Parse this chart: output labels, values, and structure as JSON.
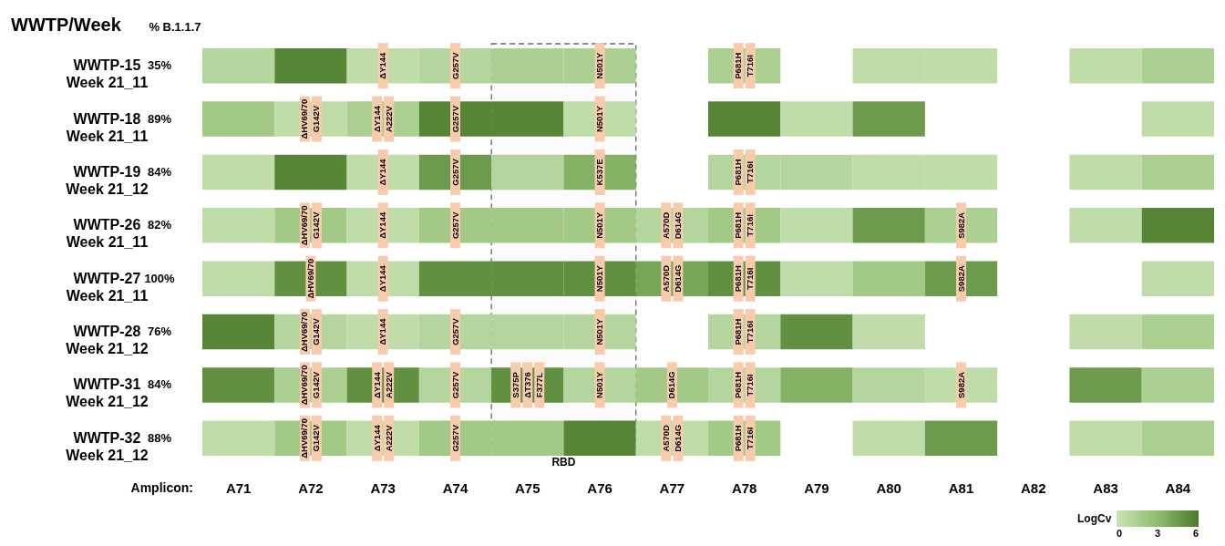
{
  "chart_data": {
    "type": "heatmap",
    "title": "WWTP/Week",
    "y2label": "% B.1.1.7",
    "xlabel": "Amplicon:",
    "clabel": "LogCv",
    "categories": [
      "A71",
      "A72",
      "A73",
      "A74",
      "A75",
      "A76",
      "A77",
      "A78",
      "A79",
      "A80",
      "A81",
      "A82",
      "A83",
      "A84"
    ],
    "y_categories": [
      "WWTP-15\nWeek 21_11",
      "WWTP-18\nWeek 21_11",
      "WWTP-19\nWeek 21_12",
      "WWTP-26\nWeek 21_11",
      "WWTP-27\nWeek 21_11",
      "WWTP-28\nWeek 21_12",
      "WWTP-31\nWeek 21_12",
      "WWTP-32\nWeek 21_12"
    ],
    "y2_categories": [
      "35%",
      "89%",
      "84%",
      "82%",
      "100%",
      "76%",
      "84%",
      "88%"
    ],
    "cells": [
      [
        1,
        5.5,
        0.5,
        1,
        1.5,
        1.5,
        null,
        1.5,
        null,
        0.5,
        0.5,
        null,
        0.5,
        1.5
      ],
      [
        2,
        0.5,
        1.5,
        5.5,
        5.5,
        0.5,
        null,
        5.5,
        0.5,
        4.5,
        null,
        null,
        null,
        0.5
      ],
      [
        0.5,
        5.5,
        0.5,
        4.5,
        1,
        3.5,
        null,
        1,
        1,
        0.5,
        0.5,
        null,
        0.5,
        1.5
      ],
      [
        0.5,
        2,
        0.5,
        2,
        2,
        2,
        1,
        2,
        0.5,
        4.5,
        1.5,
        null,
        0.5,
        5.5
      ],
      [
        0.5,
        5,
        0.5,
        5,
        5,
        5,
        4,
        5,
        0.5,
        2,
        4.5,
        null,
        null,
        0.5
      ],
      [
        5.5,
        1,
        0.5,
        1,
        1,
        1,
        null,
        1,
        5,
        0.5,
        null,
        null,
        0.5,
        1.5
      ],
      [
        5,
        1.5,
        5,
        1,
        5,
        1,
        2,
        1,
        3.5,
        1,
        0.5,
        null,
        4.5,
        1.5
      ],
      [
        0.5,
        2,
        0.5,
        2,
        2,
        5.5,
        0.5,
        2,
        null,
        0.5,
        4.5,
        null,
        0.5,
        1.5
      ]
    ],
    "cell_labels": [
      [
        null,
        null,
        "ΔY144",
        "G257V",
        null,
        "N501Y",
        null,
        [
          "P681H",
          "T716I"
        ],
        null,
        null,
        null,
        null,
        null,
        null
      ],
      [
        null,
        [
          "ΔHV69/70",
          "G142V"
        ],
        [
          "ΔY144",
          "A222V"
        ],
        "G257V",
        null,
        "N501Y",
        null,
        null,
        null,
        null,
        null,
        null,
        null,
        null
      ],
      [
        null,
        null,
        "ΔY144",
        "G257V",
        null,
        "K537E",
        null,
        [
          "P681H",
          "T716I"
        ],
        null,
        null,
        null,
        null,
        null,
        null
      ],
      [
        null,
        [
          "ΔHV69/70",
          "G142V"
        ],
        "ΔY144",
        "G257V",
        null,
        "N501Y",
        [
          "A570D",
          "D614G"
        ],
        [
          "P681H",
          "T716I"
        ],
        null,
        null,
        "S982A",
        null,
        null,
        null
      ],
      [
        null,
        "ΔHV69/70",
        "ΔY144",
        null,
        null,
        "N501Y",
        [
          "A570D",
          "D614G"
        ],
        [
          "P681H",
          "T716I"
        ],
        null,
        null,
        "S982A",
        null,
        null,
        null
      ],
      [
        null,
        [
          "ΔHV69/70",
          "G142V"
        ],
        "ΔY144",
        "G257V",
        null,
        "N501Y",
        null,
        [
          "P681H",
          "T716I"
        ],
        null,
        null,
        null,
        null,
        null,
        null
      ],
      [
        null,
        [
          "ΔHV69/70",
          "G142V"
        ],
        [
          "ΔY144",
          "A222V"
        ],
        "G257V",
        [
          "S375P",
          "ΔT376",
          "F377L"
        ],
        "N501Y",
        "D614G",
        [
          "P681H",
          "T716I"
        ],
        null,
        null,
        "S982A",
        null,
        null,
        null
      ],
      [
        null,
        [
          "ΔHV69/70",
          "G142V"
        ],
        [
          "ΔY144",
          "A222V"
        ],
        "G257V",
        null,
        null,
        [
          "A570D",
          "D614G"
        ],
        [
          "P681H",
          "T716I"
        ],
        null,
        null,
        null,
        null,
        null,
        null
      ]
    ],
    "clim": [
      0,
      6
    ],
    "cticks": [
      0,
      3,
      6
    ],
    "bands": [
      {
        "axis": "x",
        "from": "A75",
        "to": "A76",
        "label": "RBD"
      }
    ]
  }
}
